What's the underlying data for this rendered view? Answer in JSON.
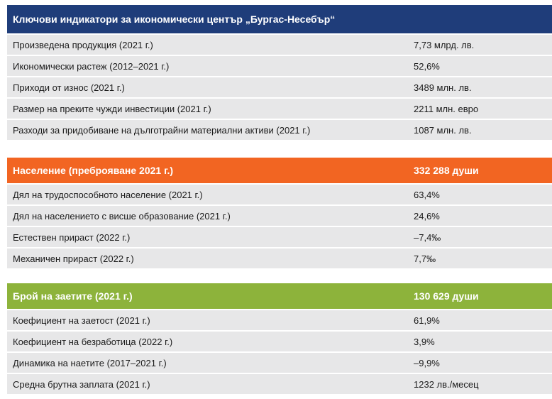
{
  "sections": [
    {
      "header": {
        "label": "Ключови индикатори за икономически център „Бургас-Несебър“",
        "value": ""
      },
      "colors": {
        "header_bg": "#1f3d7a"
      },
      "rows": [
        {
          "label": "Произведена продукция (2021 г.)",
          "value": "7,73 млрд. лв."
        },
        {
          "label": "Икономически растеж (2012–2021 г.)",
          "value": "52,6%"
        },
        {
          "label": "Приходи от износ (2021 г.)",
          "value": "3489 млн. лв."
        },
        {
          "label": "Размер на преките чужди инвестиции (2021 г.)",
          "value": "2211 млн. евро"
        },
        {
          "label": "Разходи за придобиване на дълготрайни материални активи (2021 г.)",
          "value": "1087 млн. лв."
        }
      ]
    },
    {
      "header": {
        "label": "Население (преброяване 2021 г.)",
        "value": "332 288 души"
      },
      "colors": {
        "header_bg": "#f26522"
      },
      "rows": [
        {
          "label": "Дял на трудоспособното население (2021 г.)",
          "value": "63,4%"
        },
        {
          "label": "Дял на населението с висше образование (2021 г.)",
          "value": "24,6%"
        },
        {
          "label": "Естествен прираст (2022 г.)",
          "value": "–7,4‰"
        },
        {
          "label": "Механичен прираст (2022 г.)",
          "value": "7,7‰"
        }
      ]
    },
    {
      "header": {
        "label": "Брой на заетите (2021 г.)",
        "value": "130 629 души"
      },
      "colors": {
        "header_bg": "#8db33b"
      },
      "rows": [
        {
          "label": "Коефициент на заетост (2021 г.)",
          "value": "61,9%"
        },
        {
          "label": "Коефициент на безработица (2022 г.)",
          "value": "3,9%"
        },
        {
          "label": "Динамика на наетите (2017–2021 г.)",
          "value": "–9,9%"
        },
        {
          "label": "Средна брутна заплата (2021 г.)",
          "value": "1232 лв./месец"
        }
      ]
    }
  ],
  "colors": {
    "row_bg": "#e7e7e8"
  }
}
